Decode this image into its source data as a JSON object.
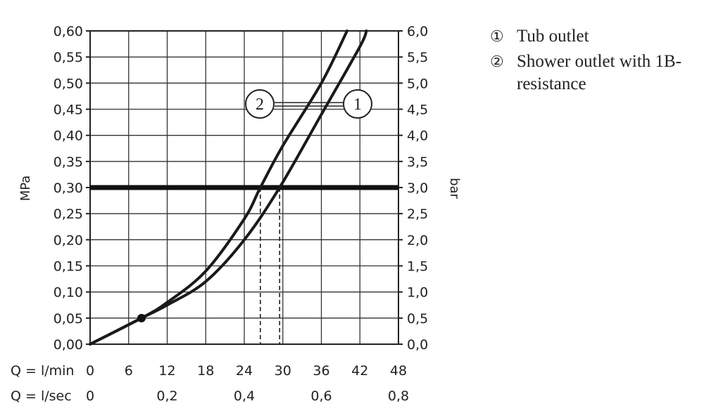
{
  "chart_data": {
    "type": "line",
    "y_left": {
      "label": "MPa",
      "range": [
        0,
        0.6
      ],
      "ticks": [
        "0,00",
        "0,05",
        "0,10",
        "0,15",
        "0,20",
        "0,25",
        "0,30",
        "0,35",
        "0,40",
        "0,45",
        "0,50",
        "0,55",
        "0,60"
      ]
    },
    "y_right": {
      "label": "bar",
      "range": [
        0,
        6
      ],
      "ticks": [
        "0,0",
        "0,5",
        "1,0",
        "1,5",
        "2,0",
        "2,5",
        "3,0",
        "3,5",
        "4,0",
        "4,5",
        "5,0",
        "5,5",
        "6,0"
      ]
    },
    "x_lmin": {
      "label": "Q = l/min",
      "range": [
        0,
        48
      ],
      "ticks": [
        "0",
        "6",
        "12",
        "18",
        "24",
        "30",
        "36",
        "42",
        "48"
      ]
    },
    "x_lsec": {
      "label": "Q = l/sec",
      "ticks": [
        "0",
        "0,2",
        "0,4",
        "0,6",
        "0,8"
      ]
    },
    "grid": true,
    "series": [
      {
        "marker": "1",
        "x": [
          0,
          8,
          12,
          18,
          24,
          29.5,
          36,
          42,
          43
        ],
        "y": [
          0,
          0.05,
          0.075,
          0.12,
          0.2,
          0.3,
          0.44,
          0.57,
          0.6
        ]
      },
      {
        "marker": "2",
        "x": [
          0,
          8,
          12,
          18,
          24,
          26.5,
          30,
          36,
          40
        ],
        "y": [
          0,
          0.05,
          0.08,
          0.14,
          0.24,
          0.3,
          0.38,
          0.5,
          0.6
        ]
      }
    ],
    "reference_line": {
      "y": 0.3
    },
    "intersections_x": [
      26.5,
      29.5
    ],
    "point": {
      "x": 8,
      "y": 0.05
    },
    "legend_position": "right"
  },
  "legend": [
    {
      "num": "①",
      "text": "Tub outlet"
    },
    {
      "num": "②",
      "text": "Shower outlet with 1B-resistance"
    }
  ],
  "markers": [
    {
      "num": "2"
    },
    {
      "num": "1"
    }
  ]
}
